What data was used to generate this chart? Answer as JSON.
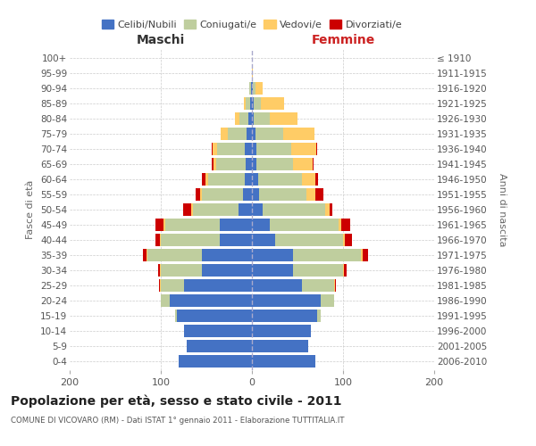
{
  "age_groups": [
    "0-4",
    "5-9",
    "10-14",
    "15-19",
    "20-24",
    "25-29",
    "30-34",
    "35-39",
    "40-44",
    "45-49",
    "50-54",
    "55-59",
    "60-64",
    "65-69",
    "70-74",
    "75-79",
    "80-84",
    "85-89",
    "90-94",
    "95-99",
    "100+"
  ],
  "birth_years": [
    "2006-2010",
    "2001-2005",
    "1996-2000",
    "1991-1995",
    "1986-1990",
    "1981-1985",
    "1976-1980",
    "1971-1975",
    "1966-1970",
    "1961-1965",
    "1956-1960",
    "1951-1955",
    "1946-1950",
    "1941-1945",
    "1936-1940",
    "1931-1935",
    "1926-1930",
    "1921-1925",
    "1916-1920",
    "1911-1915",
    "≤ 1910"
  ],
  "male_celibe": [
    80,
    72,
    75,
    82,
    90,
    75,
    55,
    55,
    35,
    35,
    15,
    10,
    8,
    7,
    8,
    6,
    4,
    2,
    1,
    0,
    0
  ],
  "male_coniugato": [
    0,
    0,
    0,
    2,
    10,
    25,
    45,
    60,
    65,
    60,
    50,
    45,
    40,
    32,
    30,
    20,
    10,
    5,
    2,
    0,
    0
  ],
  "male_vedovo": [
    0,
    0,
    0,
    0,
    0,
    1,
    1,
    1,
    1,
    2,
    2,
    2,
    3,
    3,
    5,
    8,
    5,
    2,
    0,
    0,
    0
  ],
  "male_divorziato": [
    0,
    0,
    0,
    0,
    0,
    1,
    2,
    4,
    5,
    9,
    8,
    5,
    4,
    2,
    1,
    0,
    0,
    0,
    0,
    0,
    0
  ],
  "female_celibe": [
    70,
    62,
    65,
    72,
    75,
    55,
    45,
    45,
    25,
    20,
    12,
    8,
    7,
    5,
    5,
    4,
    2,
    2,
    1,
    0,
    0
  ],
  "female_coniugata": [
    0,
    0,
    0,
    3,
    15,
    35,
    55,
    75,
    75,
    75,
    68,
    52,
    48,
    40,
    38,
    30,
    18,
    8,
    3,
    0,
    0
  ],
  "female_vedova": [
    0,
    0,
    0,
    0,
    0,
    1,
    1,
    2,
    2,
    3,
    5,
    10,
    15,
    22,
    28,
    35,
    30,
    25,
    8,
    1,
    0
  ],
  "female_divorziata": [
    0,
    0,
    0,
    0,
    0,
    1,
    3,
    5,
    8,
    10,
    3,
    8,
    3,
    1,
    1,
    0,
    0,
    0,
    0,
    0,
    0
  ],
  "colors": {
    "celibe": "#4472C4",
    "coniugato": "#BFCE9E",
    "vedovo": "#FFCC66",
    "divorziato": "#CC0000"
  },
  "title": "Popolazione per età, sesso e stato civile - 2011",
  "subtitle": "COMUNE DI VICOVARO (RM) - Dati ISTAT 1° gennaio 2011 - Elaborazione TUTTITALIA.IT",
  "xlabel_left": "Maschi",
  "xlabel_right": "Femmine",
  "ylabel_left": "Fasce di età",
  "ylabel_right": "Anni di nascita",
  "xlim": 200,
  "background_color": "#ffffff",
  "grid_color": "#cccccc"
}
